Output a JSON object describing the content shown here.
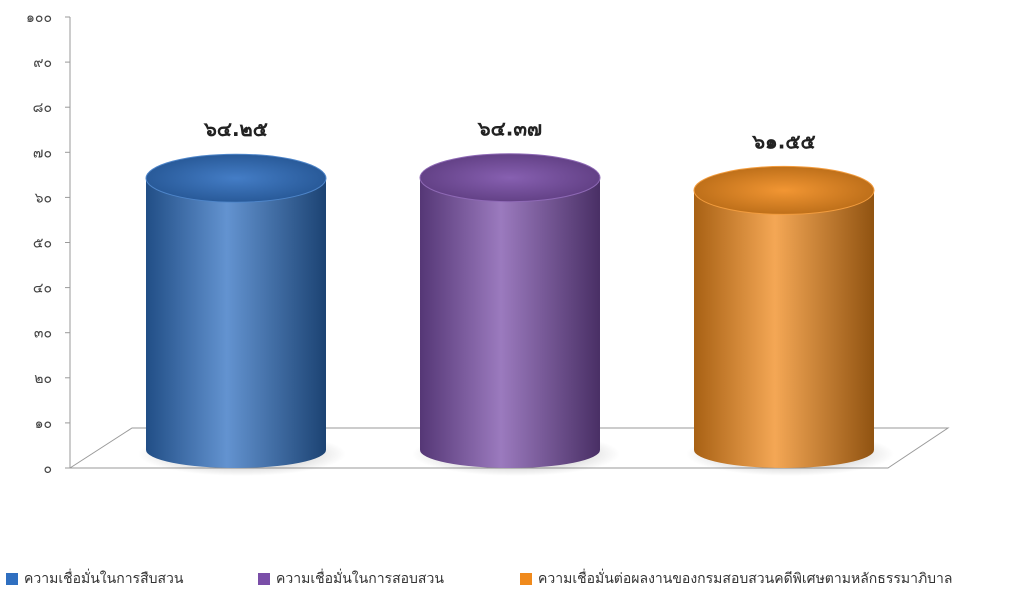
{
  "chart_data": {
    "type": "bar",
    "style": "3d-cylinder",
    "categories": [
      "ความเชื่อมั่นในการสืบสวน",
      "ความเชื่อมั่นในการสอบสวน",
      "ความเชื่อมั่นต่อผลงานของกรมสอบสวนคดีพิเศษตามหลักธรรมาภิบาล"
    ],
    "values": [
      64.25,
      64.37,
      61.55
    ],
    "data_labels": [
      "๖๔.๒๕",
      "๖๔.๓๗",
      "๖๑.๕๕"
    ],
    "colors": [
      "#2f6fc0",
      "#7a4ea8",
      "#f08a1c"
    ],
    "ylim": [
      0,
      100
    ],
    "yticks": [
      "๐",
      "๑๐",
      "๒๐",
      "๓๐",
      "๔๐",
      "๕๐",
      "๖๐",
      "๗๐",
      "๘๐",
      "๙๐",
      "๑๐๐"
    ],
    "legend_position": "bottom",
    "grid": false
  }
}
